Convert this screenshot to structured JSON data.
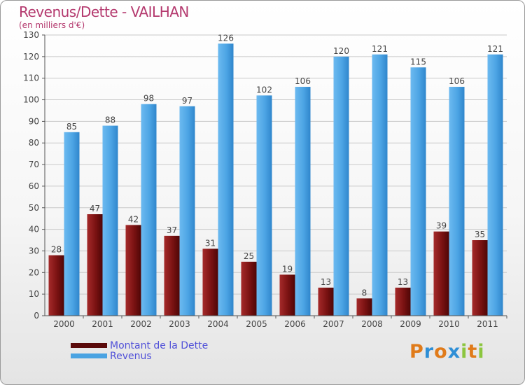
{
  "title": "Revenus/Dette - VAILHAN",
  "subtitle": "(en milliers d'€)",
  "colors": {
    "title": "#b4396e",
    "legend_text": "#5050d8",
    "dette": "#6b0e0e",
    "revenus": "#4aa3e2"
  },
  "legend": {
    "dette_label": "Montant de la Dette",
    "revenus_label": "Revenus"
  },
  "logo": {
    "letters": [
      "P",
      "r",
      "o",
      "x",
      "i",
      "t",
      "i"
    ],
    "colors": [
      "#e07b1a",
      "#2f8fd6",
      "#e07b1a",
      "#2f8fd6",
      "#8cc63f",
      "#e07b1a",
      "#8cc63f"
    ]
  },
  "chart_data": {
    "type": "bar",
    "categories": [
      "2000",
      "2001",
      "2002",
      "2003",
      "2004",
      "2005",
      "2006",
      "2007",
      "2008",
      "2009",
      "2010",
      "2011"
    ],
    "series": [
      {
        "name": "Montant de la Dette",
        "values": [
          28,
          47,
          42,
          37,
          31,
          25,
          19,
          13,
          8,
          13,
          39,
          35
        ]
      },
      {
        "name": "Revenus",
        "values": [
          85,
          88,
          98,
          97,
          126,
          102,
          106,
          120,
          121,
          115,
          106,
          121
        ]
      }
    ],
    "ylim": [
      0,
      130
    ],
    "yticks": [
      0,
      10,
      20,
      30,
      40,
      50,
      60,
      70,
      80,
      90,
      100,
      110,
      120,
      130
    ],
    "grid": true,
    "legend_position": "bottom-left"
  }
}
